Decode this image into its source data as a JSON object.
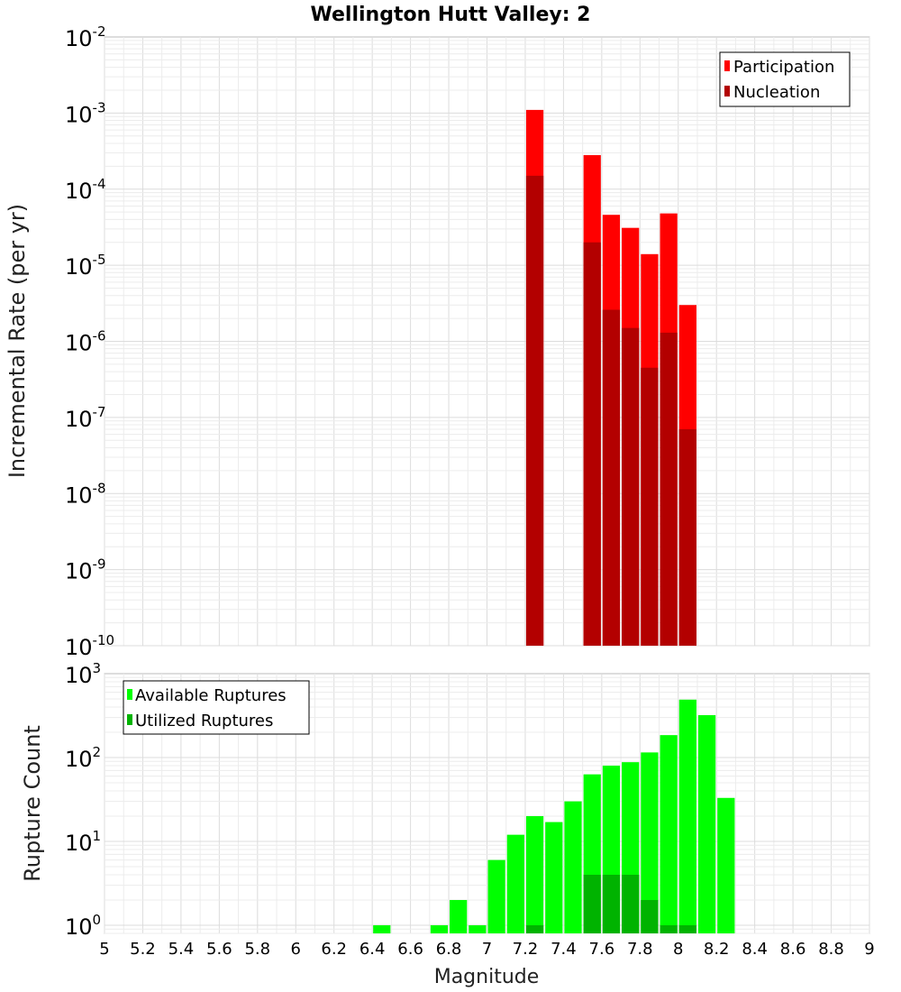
{
  "chart_data": [
    {
      "type": "bar",
      "title": "Wellington Hutt Valley: 2",
      "ylabel": "Incremental Rate (per yr)",
      "xlabel": "",
      "yscale": "log",
      "ylim": [
        1e-10,
        0.01
      ],
      "xlim": [
        5,
        9
      ],
      "bin_width": 0.1,
      "grid": true,
      "legend_position": "top-right",
      "y_tick_labels": [
        {
          "base": "10",
          "exp": "-2"
        },
        {
          "base": "10",
          "exp": "-3"
        },
        {
          "base": "10",
          "exp": "-4"
        },
        {
          "base": "10",
          "exp": "-5"
        },
        {
          "base": "10",
          "exp": "-6"
        },
        {
          "base": "10",
          "exp": "-7"
        },
        {
          "base": "10",
          "exp": "-8"
        },
        {
          "base": "10",
          "exp": "-9"
        },
        {
          "base": "10",
          "exp": "-10"
        }
      ],
      "series": [
        {
          "name": "Participation",
          "color": "#ff0000",
          "points": [
            {
              "x": 7.25,
              "y": 0.0011
            },
            {
              "x": 7.55,
              "y": 0.00028
            },
            {
              "x": 7.65,
              "y": 4.6e-05
            },
            {
              "x": 7.75,
              "y": 3.1e-05
            },
            {
              "x": 7.85,
              "y": 1.4e-05
            },
            {
              "x": 7.95,
              "y": 4.8e-05
            },
            {
              "x": 8.05,
              "y": 3e-06
            }
          ]
        },
        {
          "name": "Nucleation",
          "color": "#b30000",
          "points": [
            {
              "x": 7.25,
              "y": 0.00015
            },
            {
              "x": 7.55,
              "y": 2e-05
            },
            {
              "x": 7.65,
              "y": 2.6e-06
            },
            {
              "x": 7.75,
              "y": 1.5e-06
            },
            {
              "x": 7.85,
              "y": 4.5e-07
            },
            {
              "x": 7.95,
              "y": 1.3e-06
            },
            {
              "x": 8.05,
              "y": 7e-08
            }
          ]
        }
      ]
    },
    {
      "type": "bar",
      "title": "",
      "ylabel": "Rupture Count",
      "xlabel": "Magnitude",
      "yscale": "log",
      "ylim": [
        0.8,
        1000
      ],
      "xlim": [
        5,
        9
      ],
      "bin_width": 0.1,
      "grid": true,
      "legend_position": "top-left",
      "x_tick_labels": [
        "5",
        "5.2",
        "5.4",
        "5.6",
        "5.8",
        "6",
        "6.2",
        "6.4",
        "6.6",
        "6.8",
        "7",
        "7.2",
        "7.4",
        "7.6",
        "7.8",
        "8",
        "8.2",
        "8.4",
        "8.6",
        "8.8",
        "9"
      ],
      "y_tick_labels": [
        {
          "base": "10",
          "exp": "3",
          "value": 1000
        },
        {
          "base": "10",
          "exp": "2",
          "value": 100
        },
        {
          "base": "10",
          "exp": "1",
          "value": 10
        },
        {
          "base": "10",
          "exp": "0",
          "value": 1
        }
      ],
      "series": [
        {
          "name": "Available Ruptures",
          "color": "#00ff00",
          "points": [
            {
              "x": 6.45,
              "y": 1
            },
            {
              "x": 6.75,
              "y": 1
            },
            {
              "x": 6.85,
              "y": 2
            },
            {
              "x": 6.95,
              "y": 1
            },
            {
              "x": 7.05,
              "y": 6
            },
            {
              "x": 7.15,
              "y": 12
            },
            {
              "x": 7.25,
              "y": 20
            },
            {
              "x": 7.35,
              "y": 17
            },
            {
              "x": 7.45,
              "y": 30
            },
            {
              "x": 7.55,
              "y": 63
            },
            {
              "x": 7.65,
              "y": 80
            },
            {
              "x": 7.75,
              "y": 88
            },
            {
              "x": 7.85,
              "y": 115
            },
            {
              "x": 7.95,
              "y": 185
            },
            {
              "x": 8.05,
              "y": 490
            },
            {
              "x": 8.15,
              "y": 320
            },
            {
              "x": 8.25,
              "y": 33
            }
          ]
        },
        {
          "name": "Utilized Ruptures",
          "color": "#00b300",
          "points": [
            {
              "x": 7.25,
              "y": 1
            },
            {
              "x": 7.55,
              "y": 4
            },
            {
              "x": 7.65,
              "y": 4
            },
            {
              "x": 7.75,
              "y": 4
            },
            {
              "x": 7.85,
              "y": 2
            },
            {
              "x": 7.95,
              "y": 1
            },
            {
              "x": 8.05,
              "y": 1
            }
          ]
        }
      ]
    }
  ]
}
